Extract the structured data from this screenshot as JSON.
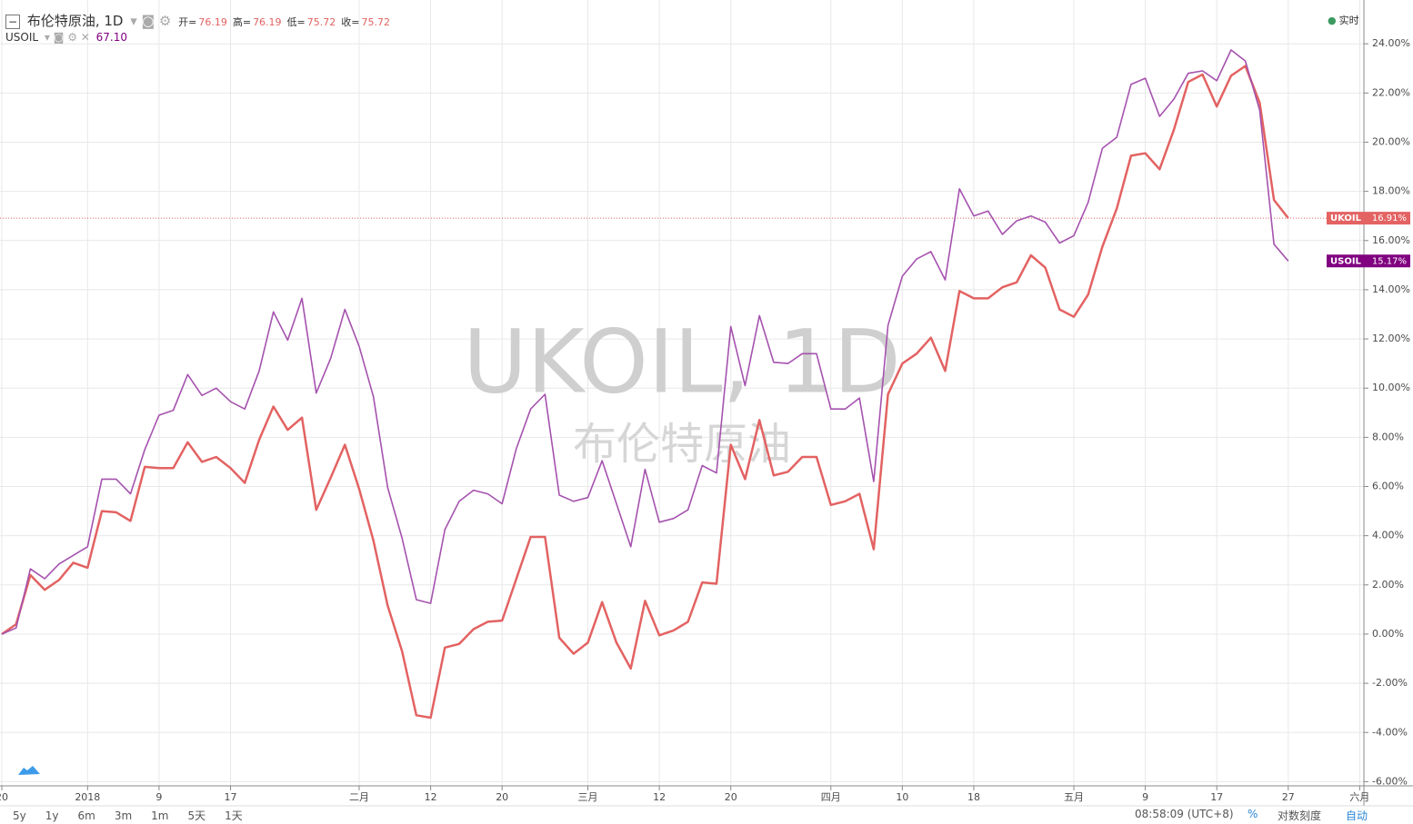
{
  "chart_data": {
    "type": "line",
    "title": "布伦特原油, 1D",
    "watermark": [
      "UKOIL, 1D",
      "布伦特原油"
    ],
    "ohlc": [
      {
        "label": "开=",
        "value": "76.19"
      },
      {
        "label": "高=",
        "value": "76.19"
      },
      {
        "label": "低=",
        "value": "75.72"
      },
      {
        "label": "收=",
        "value": "75.72"
      }
    ],
    "secondary": {
      "name": "USOIL",
      "value": "67.10"
    },
    "status": "实时",
    "categories": [
      "20",
      null,
      null,
      null,
      null,
      null,
      "2018",
      null,
      null,
      null,
      null,
      "9",
      null,
      null,
      null,
      null,
      "17",
      null,
      null,
      null,
      null,
      null,
      null,
      null,
      null,
      "二月",
      null,
      null,
      null,
      null,
      "12",
      null,
      null,
      null,
      null,
      "20",
      null,
      null,
      null,
      null,
      null,
      "三月",
      null,
      null,
      null,
      null,
      "12",
      null,
      null,
      null,
      null,
      "20",
      null,
      null,
      null,
      null,
      null,
      null,
      "四月",
      null,
      null,
      null,
      null,
      "10",
      null,
      null,
      null,
      null,
      "18",
      null,
      null,
      null,
      null,
      null,
      null,
      "五月",
      null,
      null,
      null,
      null,
      "9",
      null,
      null,
      null,
      null,
      "17",
      null,
      null,
      null,
      null,
      "27",
      null,
      null,
      null,
      null,
      "六月"
    ],
    "series": [
      {
        "name": "UKOIL",
        "color": "#e36262",
        "tag_color": "#e36262",
        "width": 2.5,
        "values": [
          0,
          0.4,
          2.4,
          1.8,
          2.2,
          2.9,
          2.7,
          5.0,
          4.95,
          4.6,
          6.8,
          6.75,
          6.75,
          7.8,
          7.0,
          7.2,
          6.75,
          6.15,
          7.9,
          9.25,
          8.3,
          8.8,
          5.05,
          6.35,
          7.7,
          5.9,
          3.8,
          1.15,
          -0.7,
          -3.3,
          -3.4,
          -0.55,
          -0.4,
          0.2,
          0.5,
          0.55,
          2.25,
          3.95,
          3.95,
          -0.15,
          -0.8,
          -0.35,
          1.3,
          -0.35,
          -1.4,
          1.35,
          -0.05,
          0.15,
          0.5,
          2.1,
          2.05,
          7.7,
          6.3,
          8.7,
          6.45,
          6.6,
          7.2,
          7.2,
          5.25,
          5.4,
          5.7,
          3.45,
          9.75,
          11.0,
          11.4,
          12.05,
          10.7,
          13.95,
          13.65,
          13.65,
          14.1,
          14.3,
          15.4,
          14.9,
          13.2,
          12.9,
          13.8,
          15.75,
          17.3,
          19.45,
          19.55,
          18.9,
          20.5,
          22.45,
          22.75,
          21.45,
          22.7,
          23.1,
          21.6,
          17.65,
          16.91,
          null,
          null,
          null,
          null,
          null
        ],
        "value_labels": [
          null,
          null,
          null,
          null,
          null,
          null,
          null,
          null,
          null,
          null,
          null,
          null,
          null,
          null,
          null,
          null,
          null,
          null,
          null,
          null,
          null,
          null,
          null,
          null,
          null,
          null,
          null,
          null,
          null,
          null,
          null,
          null,
          null,
          null,
          null,
          null,
          null,
          null,
          null,
          null,
          null,
          null,
          null,
          null,
          null,
          null,
          null,
          null,
          null,
          null,
          null,
          null,
          null,
          null,
          null,
          null,
          null,
          null,
          null,
          null,
          null,
          null,
          null,
          null,
          null,
          null,
          null,
          null,
          null,
          null,
          null,
          null,
          null,
          null,
          null,
          null,
          null,
          null,
          null,
          null,
          null,
          null,
          null,
          null,
          null,
          null,
          null,
          null,
          null,
          null,
          "16.91%",
          null,
          null,
          null,
          null,
          null
        ]
      },
      {
        "name": "USOIL",
        "color": "#a552ae",
        "tag_color": "#800080",
        "width": 1.6,
        "values": [
          0,
          0.25,
          2.65,
          2.25,
          2.85,
          3.2,
          3.55,
          6.3,
          6.3,
          5.7,
          7.5,
          8.9,
          9.1,
          10.55,
          9.7,
          10.0,
          9.45,
          9.15,
          10.7,
          13.1,
          11.95,
          13.65,
          9.8,
          11.2,
          13.2,
          11.7,
          9.65,
          5.95,
          3.9,
          1.4,
          1.25,
          4.25,
          5.4,
          5.85,
          5.7,
          5.3,
          7.55,
          9.15,
          9.75,
          5.65,
          5.4,
          5.55,
          7.05,
          5.3,
          3.55,
          6.7,
          4.55,
          4.7,
          5.05,
          6.85,
          6.55,
          12.5,
          10.1,
          12.95,
          11.05,
          11.0,
          11.4,
          11.4,
          9.15,
          9.15,
          9.6,
          6.2,
          12.55,
          14.55,
          15.25,
          15.55,
          14.4,
          18.1,
          17.0,
          17.2,
          16.25,
          16.8,
          17.0,
          16.75,
          15.9,
          16.2,
          17.55,
          19.75,
          20.2,
          22.35,
          22.6,
          21.05,
          21.75,
          22.8,
          22.9,
          22.5,
          23.75,
          23.3,
          21.3,
          15.85,
          15.17,
          null,
          null,
          null,
          null,
          null
        ],
        "value_labels": [
          null,
          null,
          null,
          null,
          null,
          null,
          null,
          null,
          null,
          null,
          null,
          null,
          null,
          null,
          null,
          null,
          null,
          null,
          null,
          null,
          null,
          null,
          null,
          null,
          null,
          null,
          null,
          null,
          null,
          null,
          null,
          null,
          null,
          null,
          null,
          null,
          null,
          null,
          null,
          null,
          null,
          null,
          null,
          null,
          null,
          null,
          null,
          null,
          null,
          null,
          null,
          null,
          null,
          null,
          null,
          null,
          null,
          null,
          null,
          null,
          null,
          null,
          null,
          null,
          null,
          null,
          null,
          null,
          null,
          null,
          null,
          null,
          null,
          null,
          null,
          null,
          null,
          null,
          null,
          null,
          null,
          null,
          null,
          null,
          null,
          null,
          null,
          null,
          null,
          null,
          "15.17%",
          null,
          null,
          null,
          null,
          null
        ]
      }
    ],
    "ylim": [
      -6.17,
      25.78
    ],
    "yticks": [
      {
        "value": -6,
        "label": "-6.00%"
      },
      {
        "value": -4,
        "label": "-4.00%"
      },
      {
        "value": -2,
        "label": "-2.00%"
      },
      {
        "value": 0,
        "label": "0.00%"
      },
      {
        "value": 2,
        "label": "2.00%"
      },
      {
        "value": 4,
        "label": "4.00%"
      },
      {
        "value": 6,
        "label": "6.00%"
      },
      {
        "value": 8,
        "label": "8.00%"
      },
      {
        "value": 10,
        "label": "10.00%"
      },
      {
        "value": 12,
        "label": "12.00%"
      },
      {
        "value": 14,
        "label": "14.00%"
      },
      {
        "value": 16,
        "label": "16.00%"
      },
      {
        "value": 18,
        "label": "18.00%"
      },
      {
        "value": 20,
        "label": "20.00%"
      },
      {
        "value": 22,
        "label": "22.00%"
      },
      {
        "value": 24,
        "label": "24.00%"
      }
    ],
    "grid": true
  },
  "toolbar": {
    "ranges": [
      "5y",
      "1y",
      "6m",
      "3m",
      "1m",
      "5天",
      "1天"
    ],
    "time": "08:58:09 (UTC+8)",
    "options": [
      "%",
      "对数刻度",
      "自动"
    ]
  }
}
